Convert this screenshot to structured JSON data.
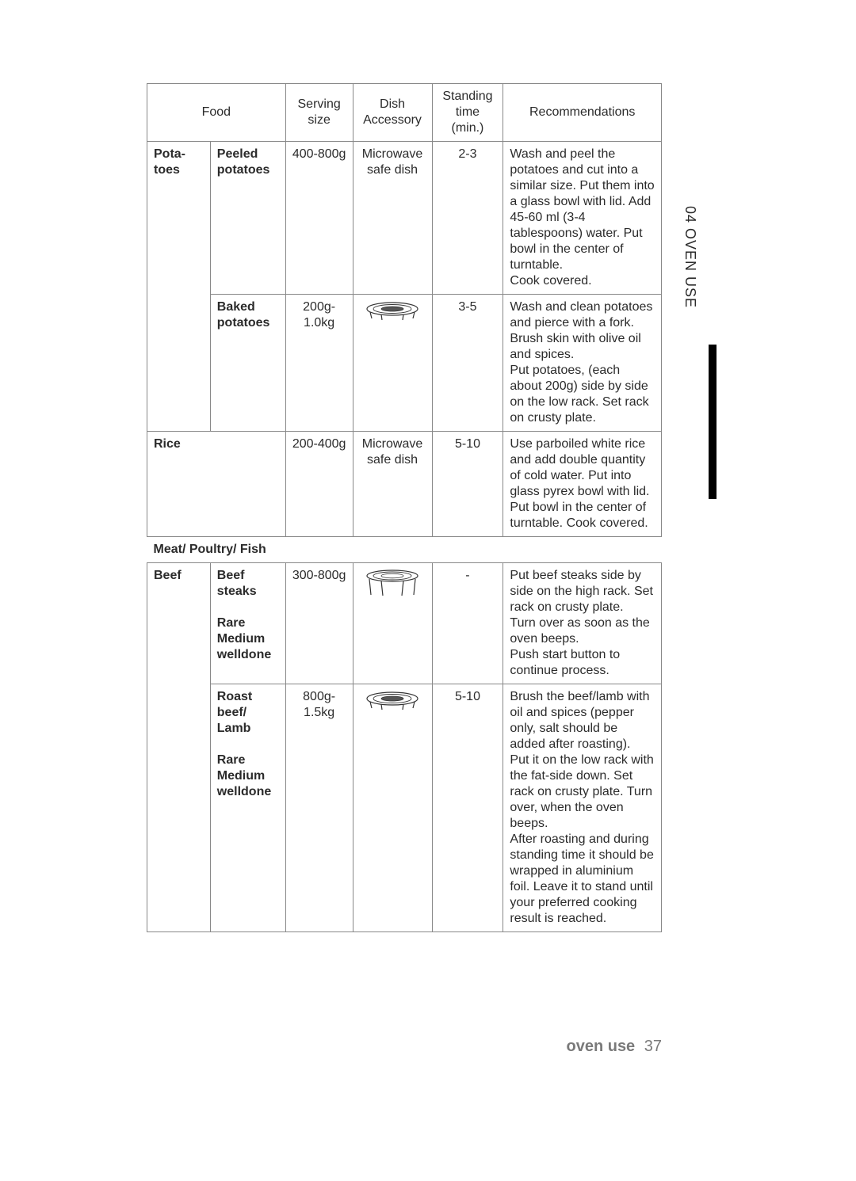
{
  "page": {
    "sideTab": "04 OVEN USE",
    "footerLabel": "oven use",
    "footerPage": "37"
  },
  "colors": {
    "text": "#2b2b2b",
    "border": "#888888",
    "footer": "#7a7a7a",
    "tabBar": "#000000",
    "background": "#ffffff"
  },
  "table": {
    "headers": {
      "food": "Food",
      "serving": "Serving size",
      "dish": "Dish Accessory",
      "standing": "Standing time (min.)",
      "rec": "Recommendations"
    },
    "rows": [
      {
        "group": "Pota-toes",
        "sub": "Peeled potatoes",
        "serving": "400-800g",
        "dish_text": "Microwave safe dish",
        "dish_icon": null,
        "standing": "2-3",
        "rec": "Wash and peel the potatoes and cut into a similar size. Put them into a glass bowl with lid. Add 45-60 ml (3-4 tablespoons) water. Put bowl in the center of turntable.\nCook covered."
      },
      {
        "group": "",
        "sub": "Baked potatoes",
        "serving": "200g-1.0kg",
        "dish_text": "",
        "dish_icon": "low-rack",
        "standing": "3-5",
        "rec": "Wash and clean potatoes and pierce with a fork. Brush skin with olive oil and spices.\nPut potatoes, (each about 200g) side by side on the low rack. Set rack on crusty plate."
      },
      {
        "group": "Rice",
        "group_span": true,
        "sub": "",
        "serving": "200-400g",
        "dish_text": "Microwave safe dish",
        "dish_icon": null,
        "standing": "5-10",
        "rec": "Use parboiled white rice and add double quantity of cold water. Put into glass pyrex bowl with lid. Put bowl in the center of turntable. Cook covered."
      }
    ],
    "section": "Meat/ Poultry/ Fish",
    "rows2": [
      {
        "group": "Beef",
        "sub_main": "Beef steaks",
        "sub_opts": "Rare\nMedium\nwelldone",
        "serving": "300-800g",
        "dish_text": "",
        "dish_icon": "high-rack",
        "standing": "-",
        "rec": "Put beef steaks side by side on the high rack. Set rack on crusty plate.\nTurn over as soon as the oven beeps.\nPush start button to continue process."
      },
      {
        "group": "",
        "sub_main": "Roast beef/ Lamb",
        "sub_opts": "Rare\nMedium\nwelldone",
        "serving": "800g-1.5kg",
        "dish_text": "",
        "dish_icon": "low-rack",
        "standing": "5-10",
        "rec": "Brush the beef/lamb with oil and spices (pepper only, salt should be added after roasting).\nPut it on the low rack with the fat-side down. Set rack on crusty plate. Turn over, when the oven beeps.\nAfter roasting and during standing time it should be wrapped in aluminium foil. Leave it to stand until your preferred cooking result is reached."
      }
    ]
  }
}
